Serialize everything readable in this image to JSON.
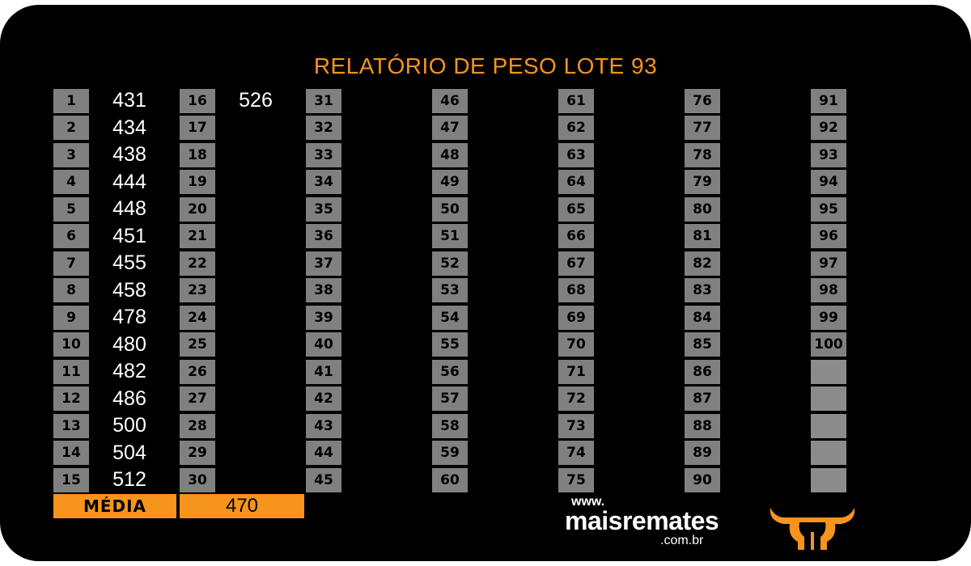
{
  "title": "RELATÓRIO DE PESO LOTE 93",
  "columns": [
    [
      {
        "n": "1",
        "v": "431"
      },
      {
        "n": "2",
        "v": "434"
      },
      {
        "n": "3",
        "v": "438"
      },
      {
        "n": "4",
        "v": "444"
      },
      {
        "n": "5",
        "v": "448"
      },
      {
        "n": "6",
        "v": "451"
      },
      {
        "n": "7",
        "v": "455"
      },
      {
        "n": "8",
        "v": "458"
      },
      {
        "n": "9",
        "v": "478"
      },
      {
        "n": "10",
        "v": "480"
      },
      {
        "n": "11",
        "v": "482"
      },
      {
        "n": "12",
        "v": "486"
      },
      {
        "n": "13",
        "v": "500"
      },
      {
        "n": "14",
        "v": "504"
      },
      {
        "n": "15",
        "v": "512"
      }
    ],
    [
      {
        "n": "16",
        "v": "526"
      },
      {
        "n": "17",
        "v": ""
      },
      {
        "n": "18",
        "v": ""
      },
      {
        "n": "19",
        "v": ""
      },
      {
        "n": "20",
        "v": ""
      },
      {
        "n": "21",
        "v": ""
      },
      {
        "n": "22",
        "v": ""
      },
      {
        "n": "23",
        "v": ""
      },
      {
        "n": "24",
        "v": ""
      },
      {
        "n": "25",
        "v": ""
      },
      {
        "n": "26",
        "v": ""
      },
      {
        "n": "27",
        "v": ""
      },
      {
        "n": "28",
        "v": ""
      },
      {
        "n": "29",
        "v": ""
      },
      {
        "n": "30",
        "v": ""
      }
    ],
    [
      {
        "n": "31",
        "v": ""
      },
      {
        "n": "32",
        "v": ""
      },
      {
        "n": "33",
        "v": ""
      },
      {
        "n": "34",
        "v": ""
      },
      {
        "n": "35",
        "v": ""
      },
      {
        "n": "36",
        "v": ""
      },
      {
        "n": "37",
        "v": ""
      },
      {
        "n": "38",
        "v": ""
      },
      {
        "n": "39",
        "v": ""
      },
      {
        "n": "40",
        "v": ""
      },
      {
        "n": "41",
        "v": ""
      },
      {
        "n": "42",
        "v": ""
      },
      {
        "n": "43",
        "v": ""
      },
      {
        "n": "44",
        "v": ""
      },
      {
        "n": "45",
        "v": ""
      }
    ],
    [
      {
        "n": "46",
        "v": ""
      },
      {
        "n": "47",
        "v": ""
      },
      {
        "n": "48",
        "v": ""
      },
      {
        "n": "49",
        "v": ""
      },
      {
        "n": "50",
        "v": ""
      },
      {
        "n": "51",
        "v": ""
      },
      {
        "n": "52",
        "v": ""
      },
      {
        "n": "53",
        "v": ""
      },
      {
        "n": "54",
        "v": ""
      },
      {
        "n": "55",
        "v": ""
      },
      {
        "n": "56",
        "v": ""
      },
      {
        "n": "57",
        "v": ""
      },
      {
        "n": "58",
        "v": ""
      },
      {
        "n": "59",
        "v": ""
      },
      {
        "n": "60",
        "v": ""
      }
    ],
    [
      {
        "n": "61",
        "v": ""
      },
      {
        "n": "62",
        "v": ""
      },
      {
        "n": "63",
        "v": ""
      },
      {
        "n": "64",
        "v": ""
      },
      {
        "n": "65",
        "v": ""
      },
      {
        "n": "66",
        "v": ""
      },
      {
        "n": "67",
        "v": ""
      },
      {
        "n": "68",
        "v": ""
      },
      {
        "n": "69",
        "v": ""
      },
      {
        "n": "70",
        "v": ""
      },
      {
        "n": "71",
        "v": ""
      },
      {
        "n": "72",
        "v": ""
      },
      {
        "n": "73",
        "v": ""
      },
      {
        "n": "74",
        "v": ""
      },
      {
        "n": "75",
        "v": ""
      }
    ],
    [
      {
        "n": "76",
        "v": ""
      },
      {
        "n": "77",
        "v": ""
      },
      {
        "n": "78",
        "v": ""
      },
      {
        "n": "79",
        "v": ""
      },
      {
        "n": "80",
        "v": ""
      },
      {
        "n": "81",
        "v": ""
      },
      {
        "n": "82",
        "v": ""
      },
      {
        "n": "83",
        "v": ""
      },
      {
        "n": "84",
        "v": ""
      },
      {
        "n": "85",
        "v": ""
      },
      {
        "n": "86",
        "v": ""
      },
      {
        "n": "87",
        "v": ""
      },
      {
        "n": "88",
        "v": ""
      },
      {
        "n": "89",
        "v": ""
      },
      {
        "n": "90",
        "v": ""
      }
    ],
    [
      {
        "n": "91",
        "v": ""
      },
      {
        "n": "92",
        "v": ""
      },
      {
        "n": "93",
        "v": ""
      },
      {
        "n": "94",
        "v": ""
      },
      {
        "n": "95",
        "v": ""
      },
      {
        "n": "96",
        "v": ""
      },
      {
        "n": "97",
        "v": ""
      },
      {
        "n": "98",
        "v": ""
      },
      {
        "n": "99",
        "v": ""
      },
      {
        "n": "100",
        "v": ""
      },
      {
        "n": "",
        "v": ""
      },
      {
        "n": "",
        "v": ""
      },
      {
        "n": "",
        "v": ""
      },
      {
        "n": "",
        "v": ""
      },
      {
        "n": "",
        "v": ""
      }
    ]
  ],
  "average": {
    "label": "MÉDIA",
    "value": "470"
  },
  "logo": {
    "www": "www.",
    "name": "maisremates",
    "domain": ".com.br",
    "icon": "bull-head-icon"
  },
  "colors": {
    "accent": "#f7941d",
    "background": "#000000",
    "cell": "#808080",
    "text": "#ffffff"
  }
}
